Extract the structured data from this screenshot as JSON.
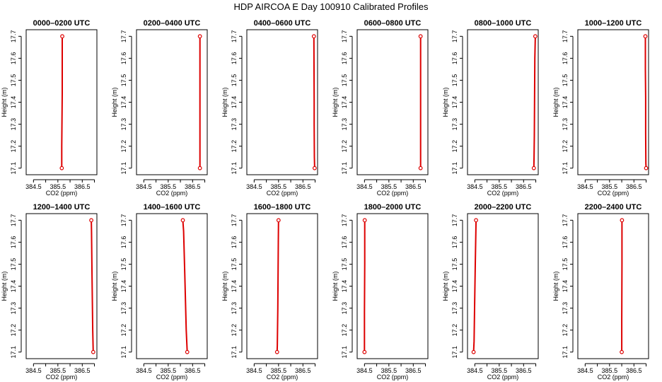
{
  "title": "HDP AIRCOA E  Day 100910  Calibrated Profiles",
  "colors": {
    "line": "#dd0000",
    "point": "#dd0000",
    "axis": "#000000",
    "background": "#ffffff"
  },
  "chart_data": [
    {
      "type": "line",
      "title": "0000–0200 UTC",
      "xlabel": "CO2 (ppm)",
      "ylabel": "Height (m)",
      "xlim": [
        384.2,
        387.1
      ],
      "ylim": [
        17.07,
        17.73
      ],
      "x_ticks": [
        384.5,
        385.0,
        385.5,
        386.0,
        386.5,
        387.0
      ],
      "x_tick_labels": [
        "384.5",
        "",
        "385.5",
        "",
        "386.5",
        ""
      ],
      "y_ticks": [
        17.1,
        17.2,
        17.3,
        17.4,
        17.5,
        17.6,
        17.7
      ],
      "y_tick_labels": [
        "17.1",
        "17.2",
        "17.3",
        "17.4",
        "17.5",
        "17.6",
        "17.7"
      ],
      "series": [
        {
          "x": [
            385.66,
            385.66,
            385.68,
            385.68
          ],
          "y": [
            17.1,
            17.2,
            17.44,
            17.7
          ]
        }
      ]
    },
    {
      "type": "line",
      "title": "0200–0400 UTC",
      "xlabel": "CO2 (ppm)",
      "ylabel": "Height (m)",
      "xlim": [
        384.2,
        387.1
      ],
      "ylim": [
        17.07,
        17.73
      ],
      "x_ticks": [
        384.5,
        385.0,
        385.5,
        386.0,
        386.5,
        387.0
      ],
      "x_tick_labels": [
        "384.5",
        "",
        "385.5",
        "",
        "386.5",
        ""
      ],
      "y_ticks": [
        17.1,
        17.2,
        17.3,
        17.4,
        17.5,
        17.6,
        17.7
      ],
      "y_tick_labels": [
        "17.1",
        "17.2",
        "17.3",
        "17.4",
        "17.5",
        "17.6",
        "17.7"
      ],
      "series": [
        {
          "x": [
            386.8,
            386.8,
            386.8,
            386.8
          ],
          "y": [
            17.1,
            17.22,
            17.47,
            17.7
          ]
        }
      ]
    },
    {
      "type": "line",
      "title": "0400–0600 UTC",
      "xlabel": "CO2 (ppm)",
      "ylabel": "Height (m)",
      "xlim": [
        384.2,
        387.1
      ],
      "ylim": [
        17.07,
        17.73
      ],
      "x_ticks": [
        384.5,
        385.0,
        385.5,
        386.0,
        386.5,
        387.0
      ],
      "x_tick_labels": [
        "384.5",
        "",
        "385.5",
        "",
        "386.5",
        ""
      ],
      "y_ticks": [
        17.1,
        17.2,
        17.3,
        17.4,
        17.5,
        17.6,
        17.7
      ],
      "y_tick_labels": [
        "17.1",
        "17.2",
        "17.3",
        "17.4",
        "17.5",
        "17.6",
        "17.7"
      ],
      "series": [
        {
          "x": [
            386.98,
            386.97,
            386.96,
            386.96,
            386.95
          ],
          "y": [
            17.1,
            17.15,
            17.3,
            17.4,
            17.7
          ]
        }
      ]
    },
    {
      "type": "line",
      "title": "0600–0800 UTC",
      "xlabel": "CO2 (ppm)",
      "ylabel": "Height (m)",
      "xlim": [
        384.2,
        387.1
      ],
      "ylim": [
        17.07,
        17.73
      ],
      "x_ticks": [
        384.5,
        385.0,
        385.5,
        386.0,
        386.5,
        387.0
      ],
      "x_tick_labels": [
        "384.5",
        "",
        "385.5",
        "",
        "386.5",
        ""
      ],
      "y_ticks": [
        17.1,
        17.2,
        17.3,
        17.4,
        17.5,
        17.6,
        17.7
      ],
      "y_tick_labels": [
        "17.1",
        "17.2",
        "17.3",
        "17.4",
        "17.5",
        "17.6",
        "17.7"
      ],
      "series": [
        {
          "x": [
            386.8,
            386.8,
            386.8
          ],
          "y": [
            17.1,
            17.5,
            17.7
          ]
        }
      ]
    },
    {
      "type": "line",
      "title": "0800–1000 UTC",
      "xlabel": "CO2 (ppm)",
      "ylabel": "Height (m)",
      "xlim": [
        384.2,
        387.1
      ],
      "ylim": [
        17.07,
        17.73
      ],
      "x_ticks": [
        384.5,
        385.0,
        385.5,
        386.0,
        386.5,
        387.0
      ],
      "x_tick_labels": [
        "384.5",
        "",
        "385.5",
        "",
        "386.5",
        ""
      ],
      "y_ticks": [
        17.1,
        17.2,
        17.3,
        17.4,
        17.5,
        17.6,
        17.7
      ],
      "y_tick_labels": [
        "17.1",
        "17.2",
        "17.3",
        "17.4",
        "17.5",
        "17.6",
        "17.7"
      ],
      "series": [
        {
          "x": [
            386.92,
            386.93,
            386.94,
            386.95,
            386.96,
            386.98
          ],
          "y": [
            17.1,
            17.15,
            17.25,
            17.4,
            17.6,
            17.7
          ]
        }
      ]
    },
    {
      "type": "line",
      "title": "1000–1200 UTC",
      "xlabel": "CO2 (ppm)",
      "ylabel": "Height (m)",
      "xlim": [
        384.2,
        387.1
      ],
      "ylim": [
        17.07,
        17.73
      ],
      "x_ticks": [
        384.5,
        385.0,
        385.5,
        386.0,
        386.5,
        387.0
      ],
      "x_tick_labels": [
        "384.5",
        "",
        "385.5",
        "",
        "386.5",
        ""
      ],
      "y_ticks": [
        17.1,
        17.2,
        17.3,
        17.4,
        17.5,
        17.6,
        17.7
      ],
      "y_tick_labels": [
        "17.1",
        "17.2",
        "17.3",
        "17.4",
        "17.5",
        "17.6",
        "17.7"
      ],
      "series": [
        {
          "x": [
            387.0,
            386.99,
            386.98,
            386.98,
            386.97,
            386.97
          ],
          "y": [
            17.1,
            17.12,
            17.26,
            17.42,
            17.55,
            17.7
          ]
        }
      ]
    },
    {
      "type": "line",
      "title": "1200–1400 UTC",
      "xlabel": "CO2 (ppm)",
      "ylabel": "Height (m)",
      "xlim": [
        384.2,
        387.1
      ],
      "ylim": [
        17.07,
        17.73
      ],
      "x_ticks": [
        384.5,
        385.0,
        385.5,
        386.0,
        386.5,
        387.0
      ],
      "x_tick_labels": [
        "384.5",
        "",
        "385.5",
        "",
        "386.5",
        ""
      ],
      "y_ticks": [
        17.1,
        17.2,
        17.3,
        17.4,
        17.5,
        17.6,
        17.7
      ],
      "y_tick_labels": [
        "17.1",
        "17.2",
        "17.3",
        "17.4",
        "17.5",
        "17.6",
        "17.7"
      ],
      "series": [
        {
          "x": [
            386.95,
            386.93,
            386.9,
            386.88,
            386.87
          ],
          "y": [
            17.1,
            17.2,
            17.45,
            17.65,
            17.7
          ]
        }
      ]
    },
    {
      "type": "line",
      "title": "1400–1600 UTC",
      "xlabel": "CO2 (ppm)",
      "ylabel": "Height (m)",
      "xlim": [
        384.2,
        387.1
      ],
      "ylim": [
        17.07,
        17.73
      ],
      "x_ticks": [
        384.5,
        385.0,
        385.5,
        386.0,
        386.5,
        387.0
      ],
      "x_tick_labels": [
        "384.5",
        "",
        "385.5",
        "",
        "386.5",
        ""
      ],
      "y_ticks": [
        17.1,
        17.2,
        17.3,
        17.4,
        17.5,
        17.6,
        17.7
      ],
      "y_tick_labels": [
        "17.1",
        "17.2",
        "17.3",
        "17.4",
        "17.5",
        "17.6",
        "17.7"
      ],
      "series": [
        {
          "x": [
            386.28,
            386.24,
            386.18,
            386.13,
            386.1
          ],
          "y": [
            17.1,
            17.2,
            17.45,
            17.65,
            17.7
          ]
        }
      ]
    },
    {
      "type": "line",
      "title": "1600–1800 UTC",
      "xlabel": "CO2 (ppm)",
      "ylabel": "Height (m)",
      "xlim": [
        384.2,
        387.1
      ],
      "ylim": [
        17.07,
        17.73
      ],
      "x_ticks": [
        384.5,
        385.0,
        385.5,
        386.0,
        386.5,
        387.0
      ],
      "x_tick_labels": [
        "384.5",
        "",
        "385.5",
        "",
        "386.5",
        ""
      ],
      "y_ticks": [
        17.1,
        17.2,
        17.3,
        17.4,
        17.5,
        17.6,
        17.7
      ],
      "y_tick_labels": [
        "17.1",
        "17.2",
        "17.3",
        "17.4",
        "17.5",
        "17.6",
        "17.7"
      ],
      "series": [
        {
          "x": [
            385.44,
            385.45,
            385.47,
            385.49,
            385.5
          ],
          "y": [
            17.1,
            17.13,
            17.3,
            17.6,
            17.7
          ]
        }
      ]
    },
    {
      "type": "line",
      "title": "1800–2000 UTC",
      "xlabel": "CO2 (ppm)",
      "ylabel": "Height (m)",
      "xlim": [
        384.2,
        387.1
      ],
      "ylim": [
        17.07,
        17.73
      ],
      "x_ticks": [
        384.5,
        385.0,
        385.5,
        386.0,
        386.5,
        387.0
      ],
      "x_tick_labels": [
        "384.5",
        "",
        "385.5",
        "",
        "386.5",
        ""
      ],
      "y_ticks": [
        17.1,
        17.2,
        17.3,
        17.4,
        17.5,
        17.6,
        17.7
      ],
      "y_tick_labels": [
        "17.1",
        "17.2",
        "17.3",
        "17.4",
        "17.5",
        "17.6",
        "17.7"
      ],
      "series": [
        {
          "x": [
            384.5,
            384.5,
            384.51,
            384.51
          ],
          "y": [
            17.1,
            17.28,
            17.5,
            17.7
          ]
        }
      ]
    },
    {
      "type": "line",
      "title": "2000–2200 UTC",
      "xlabel": "CO2 (ppm)",
      "ylabel": "Height (m)",
      "xlim": [
        384.2,
        387.1
      ],
      "ylim": [
        17.07,
        17.73
      ],
      "x_ticks": [
        384.5,
        385.0,
        385.5,
        386.0,
        386.5,
        387.0
      ],
      "x_tick_labels": [
        "384.5",
        "",
        "385.5",
        "",
        "386.5",
        ""
      ],
      "y_ticks": [
        17.1,
        17.2,
        17.3,
        17.4,
        17.5,
        17.6,
        17.7
      ],
      "y_tick_labels": [
        "17.1",
        "17.2",
        "17.3",
        "17.4",
        "17.5",
        "17.6",
        "17.7"
      ],
      "series": [
        {
          "x": [
            384.45,
            384.47,
            384.49,
            384.52,
            384.55
          ],
          "y": [
            17.1,
            17.15,
            17.3,
            17.5,
            17.7
          ]
        }
      ]
    },
    {
      "type": "line",
      "title": "2200–2400 UTC",
      "xlabel": "CO2 (ppm)",
      "ylabel": "Height (m)",
      "xlim": [
        384.2,
        387.1
      ],
      "ylim": [
        17.07,
        17.73
      ],
      "x_ticks": [
        384.5,
        385.0,
        385.5,
        386.0,
        386.5,
        387.0
      ],
      "x_tick_labels": [
        "384.5",
        "",
        "385.5",
        "",
        "386.5",
        ""
      ],
      "y_ticks": [
        17.1,
        17.2,
        17.3,
        17.4,
        17.5,
        17.6,
        17.7
      ],
      "y_tick_labels": [
        "17.1",
        "17.2",
        "17.3",
        "17.4",
        "17.5",
        "17.6",
        "17.7"
      ],
      "series": [
        {
          "x": [
            386.0,
            386.0,
            386.01,
            386.01
          ],
          "y": [
            17.1,
            17.25,
            17.5,
            17.7
          ]
        }
      ]
    }
  ]
}
